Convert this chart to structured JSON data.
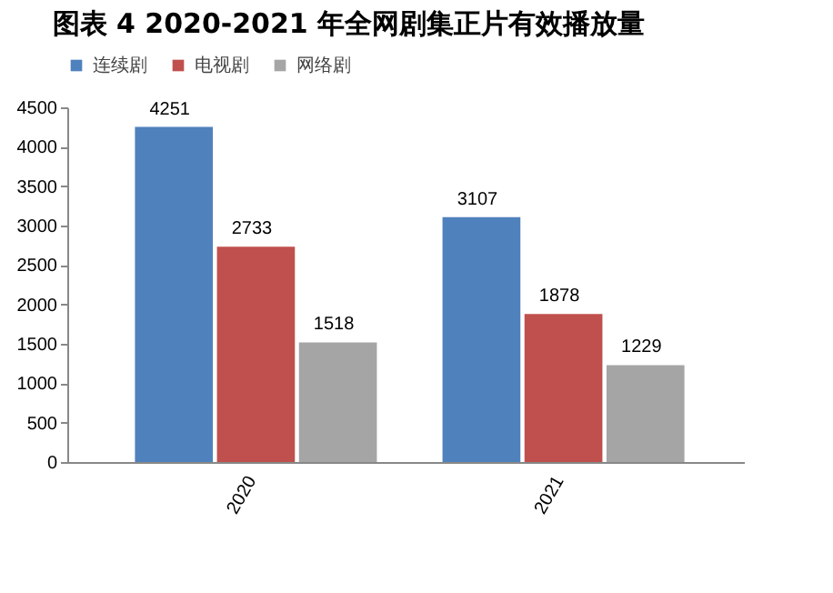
{
  "chart_data": {
    "type": "bar",
    "title": "图表 4 2020-2021 年全网剧集正片有效播放量",
    "categories": [
      "2020",
      "2021"
    ],
    "series": [
      {
        "name": "连续剧",
        "color": "#4f81bd",
        "values": [
          4251,
          3107
        ]
      },
      {
        "name": "电视剧",
        "color": "#c0504d",
        "values": [
          2733,
          1878
        ]
      },
      {
        "name": "网络剧",
        "color": "#a5a5a5",
        "values": [
          1518,
          1229
        ]
      }
    ],
    "ylim": [
      0,
      4500
    ],
    "yticks": [
      0,
      500,
      1000,
      1500,
      2000,
      2500,
      3000,
      3500,
      4000,
      4500
    ],
    "grid": false,
    "legend": "top",
    "data_labels": true
  }
}
